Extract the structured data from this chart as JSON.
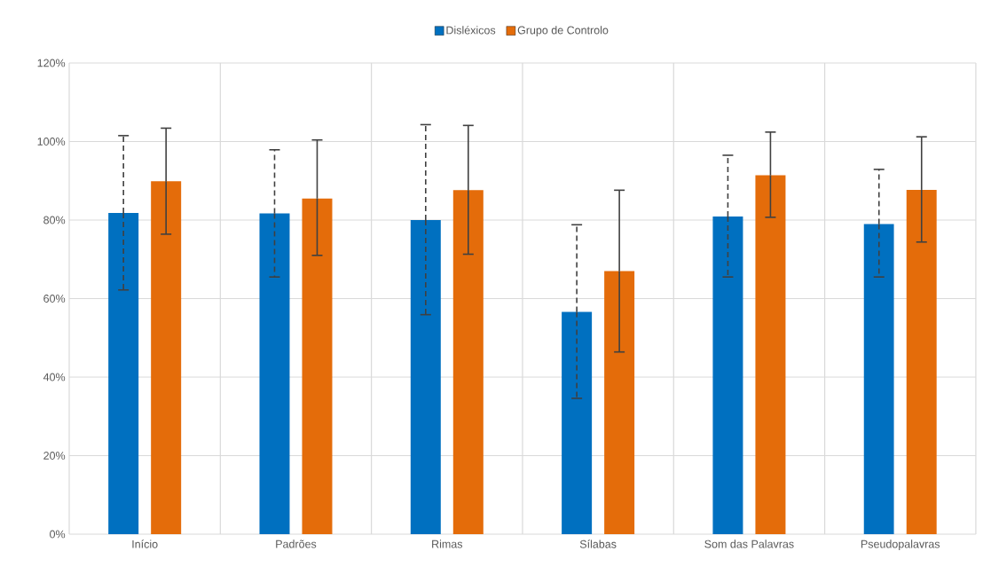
{
  "chart_data": {
    "type": "bar",
    "categories": [
      "Início",
      "Padrões",
      "Rimas",
      "Sílabas",
      "Som das Palavras",
      "Pseudopalavras"
    ],
    "series": [
      {
        "name": "Disléxicos",
        "color": "#0070c0",
        "line_style": "dashed",
        "values": [
          81.8,
          81.7,
          80.0,
          56.6,
          80.9,
          79.0
        ],
        "errors": [
          [
            62.2,
            101.5
          ],
          [
            65.5,
            97.9
          ],
          [
            55.9,
            104.3
          ],
          [
            34.6,
            78.8
          ],
          [
            65.5,
            96.5
          ],
          [
            65.5,
            92.9
          ]
        ]
      },
      {
        "name": "Grupo de Controlo",
        "color": "#e46c0a",
        "line_style": "solid",
        "values": [
          89.9,
          85.5,
          87.6,
          67.0,
          91.4,
          87.7
        ],
        "errors": [
          [
            76.4,
            103.4
          ],
          [
            71.0,
            100.4
          ],
          [
            71.3,
            104.1
          ],
          [
            46.4,
            87.6
          ],
          [
            80.7,
            102.4
          ],
          [
            74.4,
            101.2
          ]
        ]
      }
    ],
    "ylim": [
      0,
      120
    ],
    "yticks": [
      {
        "value": 0,
        "label": "0%"
      },
      {
        "value": 20,
        "label": "20%"
      },
      {
        "value": 40,
        "label": "40%"
      },
      {
        "value": 60,
        "label": "60%"
      },
      {
        "value": 80,
        "label": "80%"
      },
      {
        "value": 100,
        "label": "100%"
      },
      {
        "value": 120,
        "label": "120%"
      }
    ],
    "grid": true,
    "legend": "top"
  }
}
